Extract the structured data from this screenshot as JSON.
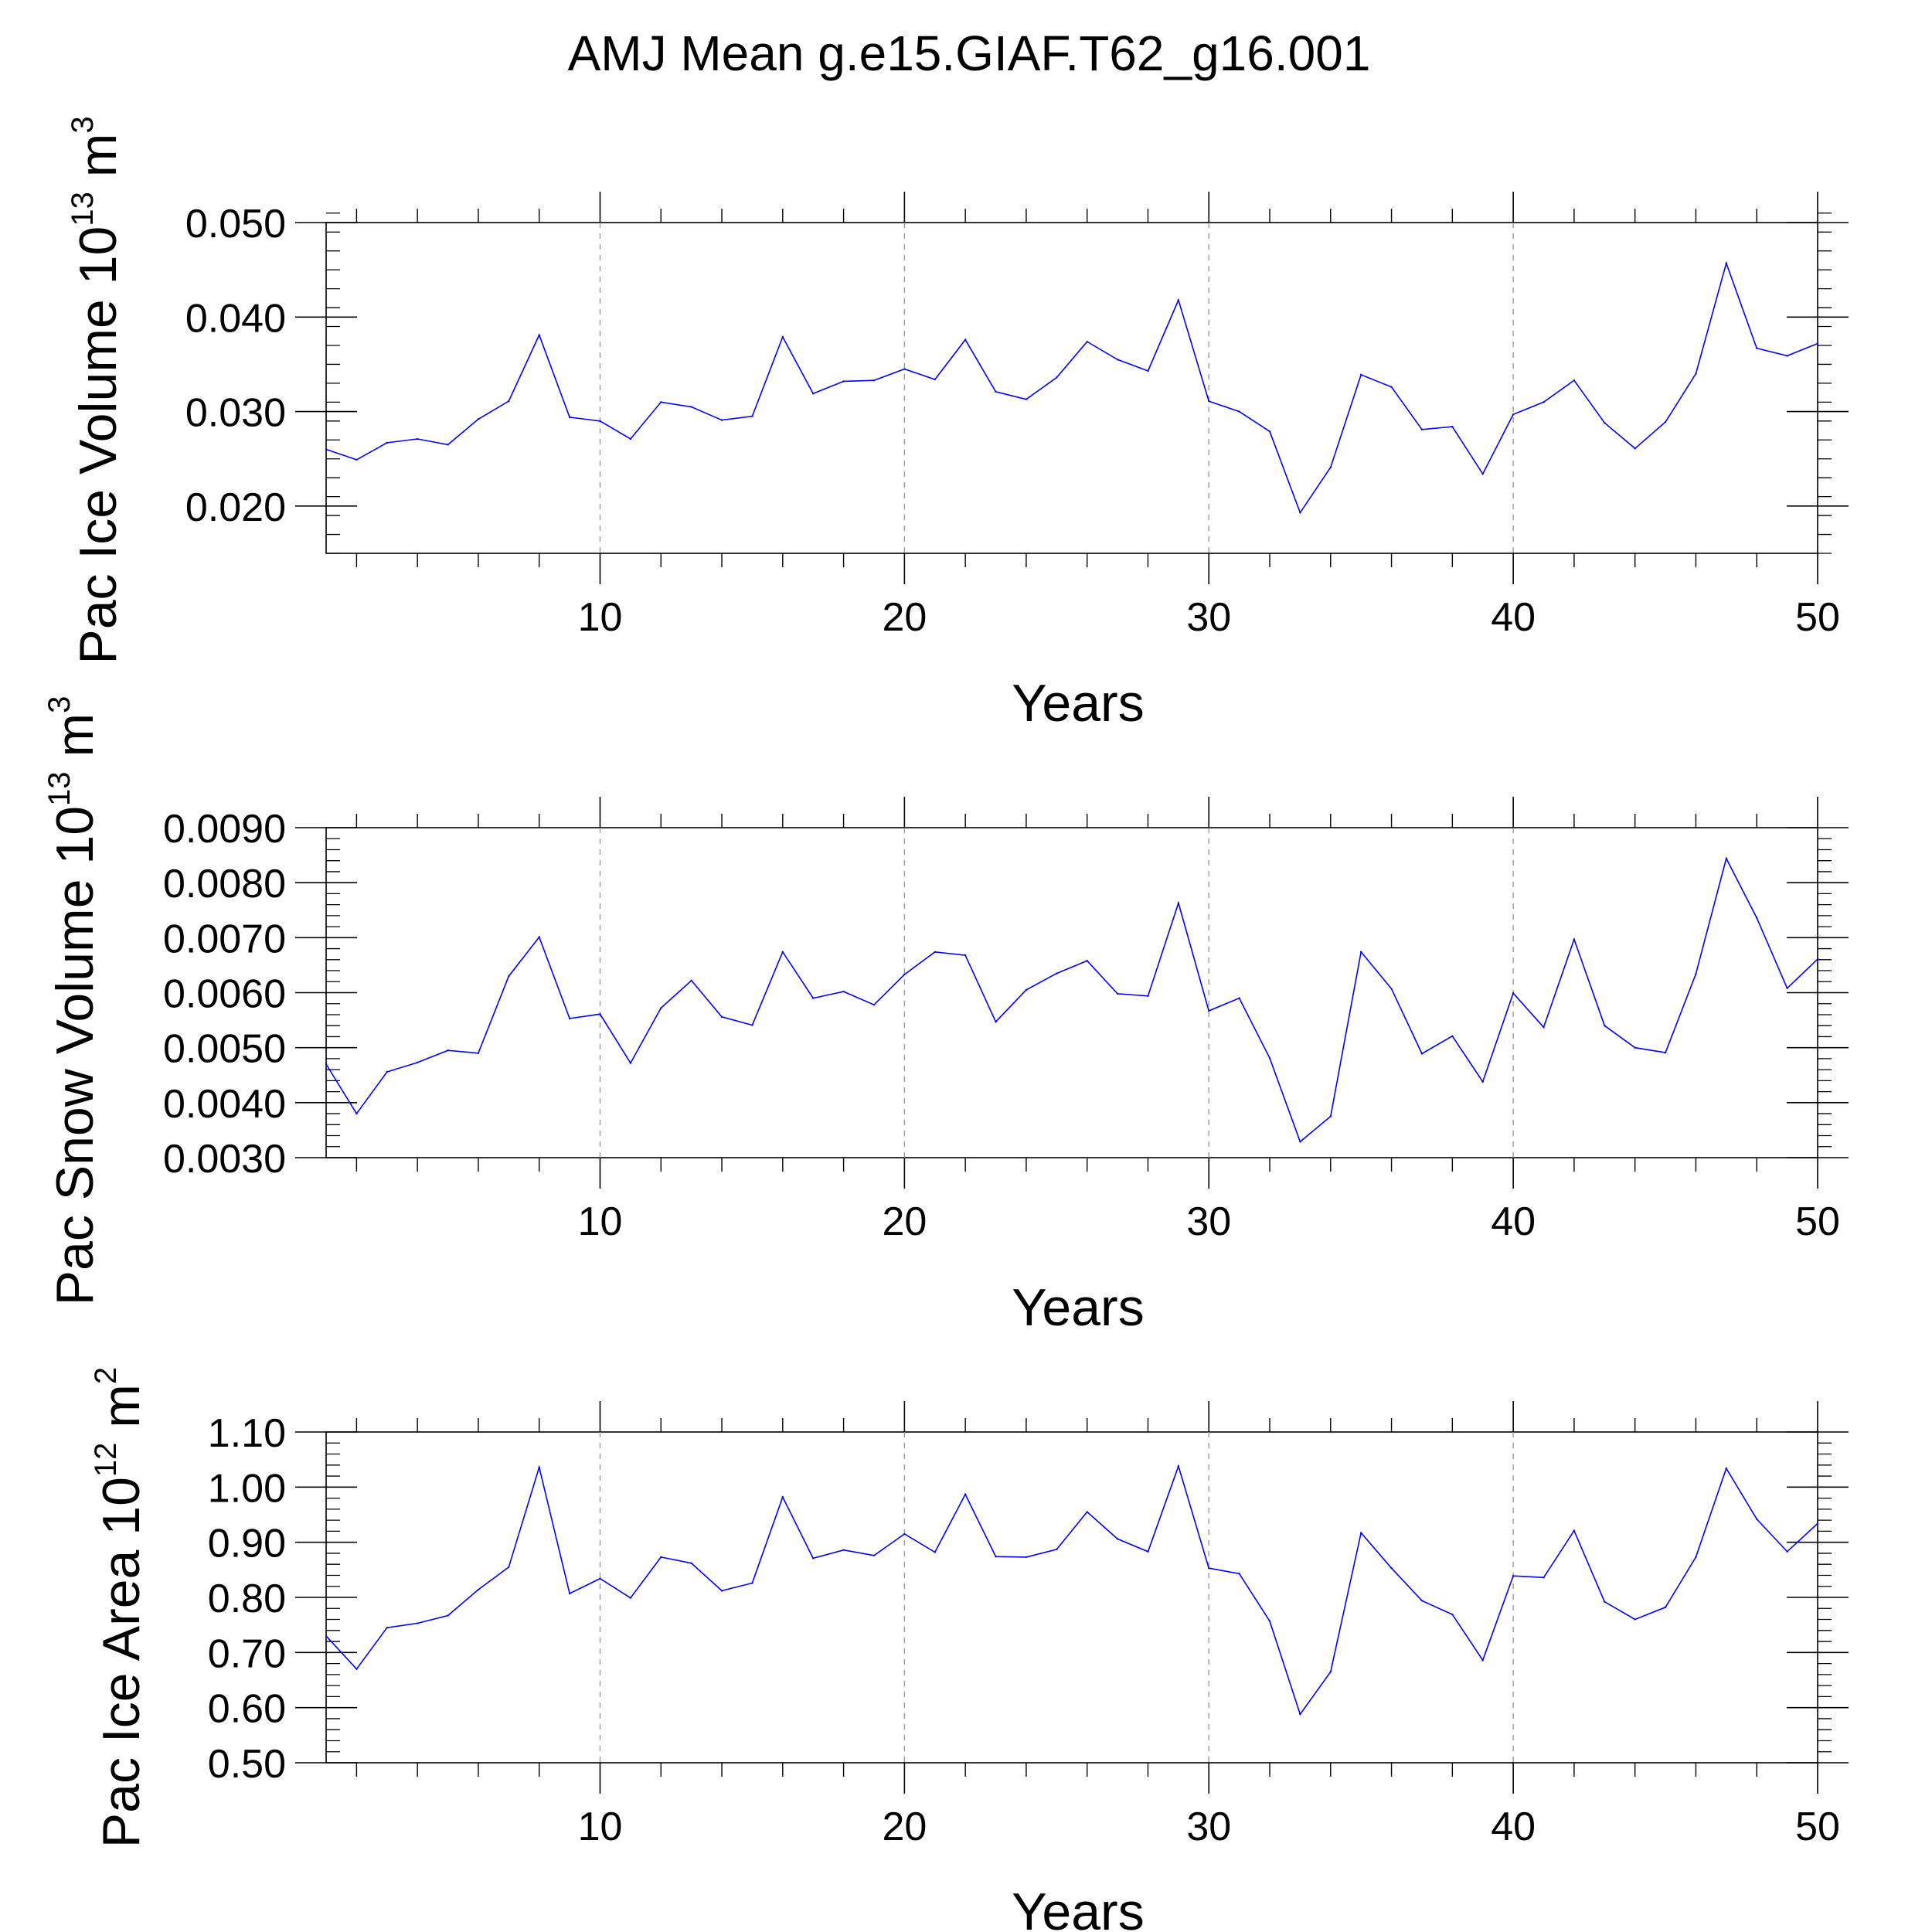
{
  "figure": {
    "title": "AMJ Mean g.e15.GIAF.T62_g16.001"
  },
  "chart_data": [
    {
      "type": "line",
      "id": "ice-volume",
      "xlabel": "Years",
      "ylabel_main": "Pac Ice Volume 10",
      "ylabel_exp": "13",
      "ylabel_unit": " m",
      "ylabel_unit_exp": "3",
      "xlim": [
        1,
        50
      ],
      "ylim": [
        0.015,
        0.05
      ],
      "yticks": [
        0.02,
        0.03,
        0.04,
        0.05
      ],
      "ytick_labels": [
        "0.020",
        "0.030",
        "0.040",
        "0.050"
      ],
      "xticks": [
        10,
        20,
        30,
        40,
        50
      ],
      "xtick_labels": [
        "10",
        "20",
        "30",
        "40",
        "50"
      ],
      "grid_x": true,
      "series": [
        {
          "name": "Pac Ice Volume",
          "color": "#0000ff",
          "values": [
            0.026,
            0.0249,
            0.0267,
            0.0271,
            0.0265,
            0.0292,
            0.0311,
            0.0381,
            0.0294,
            0.029,
            0.0271,
            0.031,
            0.0305,
            0.0291,
            0.0295,
            0.0379,
            0.0319,
            0.0332,
            0.0333,
            0.0345,
            0.0334,
            0.0376,
            0.0321,
            0.0313,
            0.0336,
            0.0374,
            0.0355,
            0.0343,
            0.0418,
            0.0311,
            0.03,
            0.0279,
            0.0193,
            0.0241,
            0.0339,
            0.0326,
            0.0281,
            0.0284,
            0.0234,
            0.0297,
            0.031,
            0.0333,
            0.0288,
            0.0261,
            0.0289,
            0.034,
            0.0457,
            0.0367,
            0.0359,
            0.0372
          ]
        }
      ]
    },
    {
      "type": "line",
      "id": "snow-volume",
      "xlabel": "Years",
      "ylabel_main": "Pac Snow Volume 10",
      "ylabel_exp": "13",
      "ylabel_unit": " m",
      "ylabel_unit_exp": "3",
      "xlim": [
        1,
        50
      ],
      "ylim": [
        0.003,
        0.009
      ],
      "yticks": [
        0.003,
        0.004,
        0.005,
        0.006,
        0.007,
        0.008,
        0.009
      ],
      "ytick_labels": [
        "0.0030",
        "0.0040",
        "0.0050",
        "0.0060",
        "0.0070",
        "0.0080",
        "0.0090"
      ],
      "xticks": [
        10,
        20,
        30,
        40,
        50
      ],
      "xtick_labels": [
        "10",
        "20",
        "30",
        "40",
        "50"
      ],
      "grid_x": true,
      "series": [
        {
          "name": "Pac Snow Volume",
          "color": "#0000ff",
          "values": [
            0.0047,
            0.0038,
            0.00456,
            0.00473,
            0.00495,
            0.0049,
            0.0063,
            0.00701,
            0.00553,
            0.00561,
            0.00472,
            0.00572,
            0.00622,
            0.00556,
            0.00541,
            0.00674,
            0.0059,
            0.00602,
            0.00578,
            0.00633,
            0.00674,
            0.00668,
            0.00547,
            0.00605,
            0.00635,
            0.00658,
            0.00598,
            0.00594,
            0.00763,
            0.00567,
            0.0059,
            0.00481,
            0.00329,
            0.00375,
            0.00674,
            0.00607,
            0.00489,
            0.00521,
            0.00438,
            0.00599,
            0.00537,
            0.00697,
            0.0054,
            0.005,
            0.00491,
            0.00634,
            0.00844,
            0.00736,
            0.00608,
            0.00661
          ]
        }
      ]
    },
    {
      "type": "line",
      "id": "ice-area",
      "xlabel": "Years",
      "ylabel_main": "Pac Ice Area 10",
      "ylabel_exp": "12",
      "ylabel_unit": " m",
      "ylabel_unit_exp": "2",
      "xlim": [
        1,
        50
      ],
      "ylim": [
        0.5,
        1.1
      ],
      "yticks": [
        0.5,
        0.6,
        0.7,
        0.8,
        0.9,
        1.0,
        1.1
      ],
      "ytick_labels": [
        "0.50",
        "0.60",
        "0.70",
        "0.80",
        "0.90",
        "1.00",
        "1.10"
      ],
      "xticks": [
        10,
        20,
        30,
        40,
        50
      ],
      "xtick_labels": [
        "10",
        "20",
        "30",
        "40",
        "50"
      ],
      "grid_x": true,
      "series": [
        {
          "name": "Pac Ice Area",
          "color": "#0000ff",
          "values": [
            0.73,
            0.67,
            0.745,
            0.753,
            0.767,
            0.814,
            0.855,
            1.036,
            0.807,
            0.834,
            0.799,
            0.873,
            0.862,
            0.812,
            0.826,
            0.982,
            0.871,
            0.886,
            0.876,
            0.915,
            0.882,
            0.987,
            0.874,
            0.873,
            0.887,
            0.955,
            0.906,
            0.883,
            1.038,
            0.853,
            0.843,
            0.757,
            0.588,
            0.665,
            0.917,
            0.853,
            0.794,
            0.769,
            0.686,
            0.839,
            0.836,
            0.921,
            0.792,
            0.76,
            0.782,
            0.873,
            1.034,
            0.942,
            0.883,
            0.934
          ]
        }
      ]
    }
  ]
}
